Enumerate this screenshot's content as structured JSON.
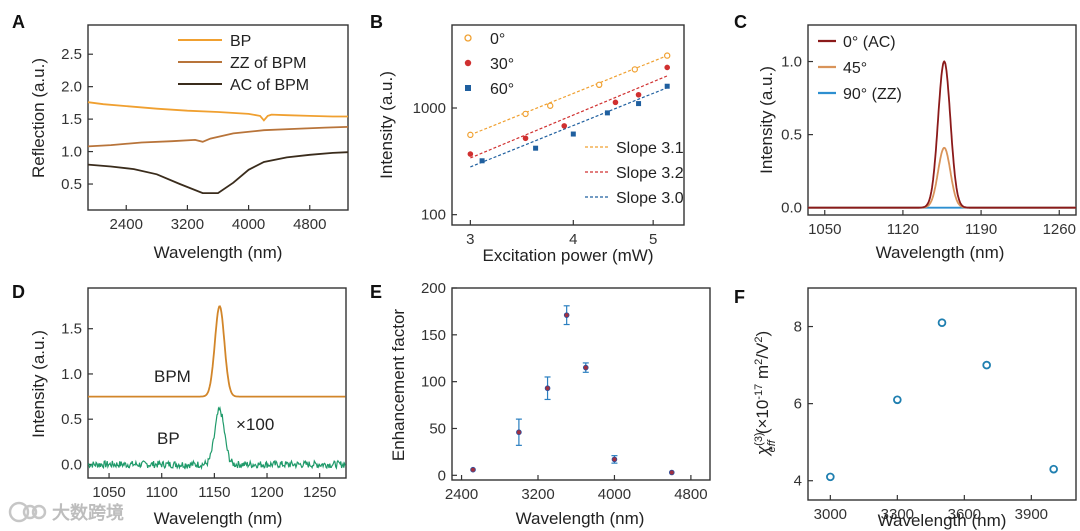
{
  "figure": {
    "watermark": "大数跨境",
    "panels": {
      "A": "A",
      "B": "B",
      "C": "C",
      "D": "D",
      "E": "E",
      "F": "F"
    }
  },
  "chart_data": [
    {
      "id": "A",
      "type": "line",
      "title": "",
      "xlabel": "Wavelength (nm)",
      "ylabel": "Reflection (a.u.)",
      "xlim": [
        1900,
        5300
      ],
      "ylim": [
        0.1,
        2.95
      ],
      "xticks": [
        2400,
        3200,
        4000,
        4800
      ],
      "yticks": [
        0.5,
        1.0,
        1.5,
        2.0,
        2.5
      ],
      "ytick_labels": [
        "0.5",
        "1.0",
        "1.5",
        "2.0",
        "2.5"
      ],
      "legend": "top-right",
      "series": [
        {
          "name": "BP",
          "color": "#f0a030",
          "x": [
            1900,
            2100,
            2400,
            2800,
            3200,
            3600,
            4000,
            4150,
            4200,
            4250,
            4300,
            4500,
            4800,
            5100,
            5300
          ],
          "y": [
            1.76,
            1.73,
            1.7,
            1.66,
            1.63,
            1.61,
            1.58,
            1.55,
            1.48,
            1.55,
            1.57,
            1.56,
            1.55,
            1.54,
            1.54
          ]
        },
        {
          "name": "ZZ of BPM",
          "color": "#b8743a",
          "x": [
            1900,
            2200,
            2600,
            3000,
            3300,
            3400,
            3500,
            3800,
            4200,
            4600,
            5000,
            5300
          ],
          "y": [
            1.08,
            1.1,
            1.14,
            1.16,
            1.18,
            1.15,
            1.2,
            1.28,
            1.33,
            1.35,
            1.37,
            1.38
          ]
        },
        {
          "name": "AC of BPM",
          "color": "#3a2c1c",
          "x": [
            1900,
            2200,
            2500,
            2800,
            3100,
            3400,
            3600,
            3800,
            4000,
            4200,
            4500,
            4800,
            5100,
            5300
          ],
          "y": [
            0.8,
            0.77,
            0.73,
            0.65,
            0.5,
            0.36,
            0.36,
            0.52,
            0.72,
            0.84,
            0.91,
            0.95,
            0.98,
            0.99
          ]
        }
      ]
    },
    {
      "id": "B",
      "type": "scatter",
      "xlabel": "Excitation power (mW)",
      "ylabel": "Intensity (a.u.)",
      "xscale": "log",
      "yscale": "log",
      "xlim": [
        2.85,
        5.45
      ],
      "ylim": [
        80,
        6000
      ],
      "xticks": [
        3,
        4,
        5
      ],
      "yticks": [
        100,
        1000
      ],
      "legend": "top-left",
      "series": [
        {
          "name": "0°",
          "color": "#f0a030",
          "marker": "open-circle",
          "x": [
            3.0,
            3.5,
            3.75,
            4.3,
            4.75,
            5.2
          ],
          "y": [
            560,
            880,
            1050,
            1650,
            2300,
            3100
          ],
          "fit": {
            "label": "Slope 3.1",
            "x": [
              3.0,
              5.2
            ],
            "y": [
              560,
              3100
            ]
          }
        },
        {
          "name": "30°",
          "color": "#d03030",
          "marker": "circle",
          "x": [
            3.0,
            3.5,
            3.9,
            4.5,
            4.8,
            5.2
          ],
          "y": [
            370,
            520,
            680,
            1130,
            1330,
            2400
          ],
          "fit": {
            "label": "Slope 3.2",
            "x": [
              3.0,
              5.2
            ],
            "y": [
              340,
              2000
            ]
          }
        },
        {
          "name": "60°",
          "color": "#1f5f9f",
          "marker": "square",
          "x": [
            3.1,
            3.6,
            4.0,
            4.4,
            4.8,
            5.2
          ],
          "y": [
            320,
            420,
            570,
            900,
            1100,
            1600
          ],
          "fit": {
            "label": "Slope 3.0",
            "x": [
              3.0,
              5.2
            ],
            "y": [
              280,
              1550
            ]
          }
        }
      ]
    },
    {
      "id": "C",
      "type": "line",
      "xlabel": "Wavelength (nm)",
      "ylabel": "Intensity (a.u.)",
      "xlim": [
        1035,
        1275
      ],
      "ylim": [
        -0.05,
        1.25
      ],
      "xticks": [
        1050,
        1120,
        1190,
        1260
      ],
      "yticks": [
        0.0,
        0.5,
        1.0
      ],
      "ytick_labels": [
        "0.0",
        "0.5",
        "1.0"
      ],
      "legend": "top-left",
      "series": [
        {
          "name": "0° (AC)",
          "color": "#8b1a1a",
          "center": 1157,
          "amplitude": 1.0,
          "width": 5.5
        },
        {
          "name": "45°",
          "color": "#d9945a",
          "center": 1157,
          "amplitude": 0.41,
          "width": 5.5
        },
        {
          "name": "90° (ZZ)",
          "color": "#2d8fd0",
          "center": 1157,
          "amplitude": 0.0,
          "width": 5.5
        }
      ]
    },
    {
      "id": "D",
      "type": "line",
      "xlabel": "Wavelength (nm)",
      "ylabel": "Intensity (a.u.)",
      "xlim": [
        1030,
        1275
      ],
      "ylim": [
        -0.15,
        1.95
      ],
      "xticks": [
        1050,
        1100,
        1150,
        1200,
        1250
      ],
      "yticks": [
        0.0,
        0.5,
        1.0,
        1.5
      ],
      "ytick_labels": [
        "0.0",
        "0.5",
        "1.0",
        "1.5"
      ],
      "annotations": {
        "bpm": "BPM",
        "bp": "BP",
        "scale": "×100"
      },
      "series": [
        {
          "name": "BPM",
          "color": "#d2862a",
          "baseline": 0.75,
          "center": 1155,
          "amplitude": 1.0,
          "width": 4.5
        },
        {
          "name": "BP",
          "color": "#1f9a6a",
          "baseline": 0.0,
          "center": 1155,
          "amplitude": 0.6,
          "width": 4.5,
          "noise": 0.04
        }
      ]
    },
    {
      "id": "E",
      "type": "scatter",
      "xlabel": "Wavelength (nm)",
      "ylabel": "Enhancement factor",
      "xlim": [
        2300,
        5000
      ],
      "ylim": [
        -5,
        200
      ],
      "xticks": [
        2400,
        3200,
        4000,
        4800
      ],
      "yticks": [
        0,
        50,
        100,
        150,
        200
      ],
      "points": [
        {
          "x": 2520,
          "y": 6,
          "err": 0
        },
        {
          "x": 3000,
          "y": 46,
          "err": 14
        },
        {
          "x": 3300,
          "y": 93,
          "err": 12
        },
        {
          "x": 3500,
          "y": 171,
          "err": 10
        },
        {
          "x": 3700,
          "y": 115,
          "err": 5
        },
        {
          "x": 4000,
          "y": 17,
          "err": 4
        },
        {
          "x": 4600,
          "y": 3,
          "err": 0
        }
      ]
    },
    {
      "id": "F",
      "type": "scatter",
      "xlabel": "Wavelength (nm)",
      "ylabel_symbol": "χ",
      "ylabel_sup": "(3)",
      "ylabel_sub": "eff",
      "ylabel_units_pre": "(×10",
      "ylabel_units_exp": "-17",
      "ylabel_units_mid": " m",
      "ylabel_units_exp2": "2",
      "ylabel_units_post": "/V",
      "ylabel_units_exp3": "2",
      "ylabel_units_close": ")",
      "xlim": [
        2900,
        4100
      ],
      "ylim": [
        3.5,
        9.0
      ],
      "xticks": [
        3000,
        3300,
        3600,
        3900
      ],
      "yticks": [
        4,
        6,
        8
      ],
      "points": [
        {
          "x": 3000,
          "y": 4.1
        },
        {
          "x": 3300,
          "y": 6.1
        },
        {
          "x": 3500,
          "y": 8.1
        },
        {
          "x": 3700,
          "y": 7.0
        },
        {
          "x": 4000,
          "y": 4.3
        }
      ]
    }
  ]
}
